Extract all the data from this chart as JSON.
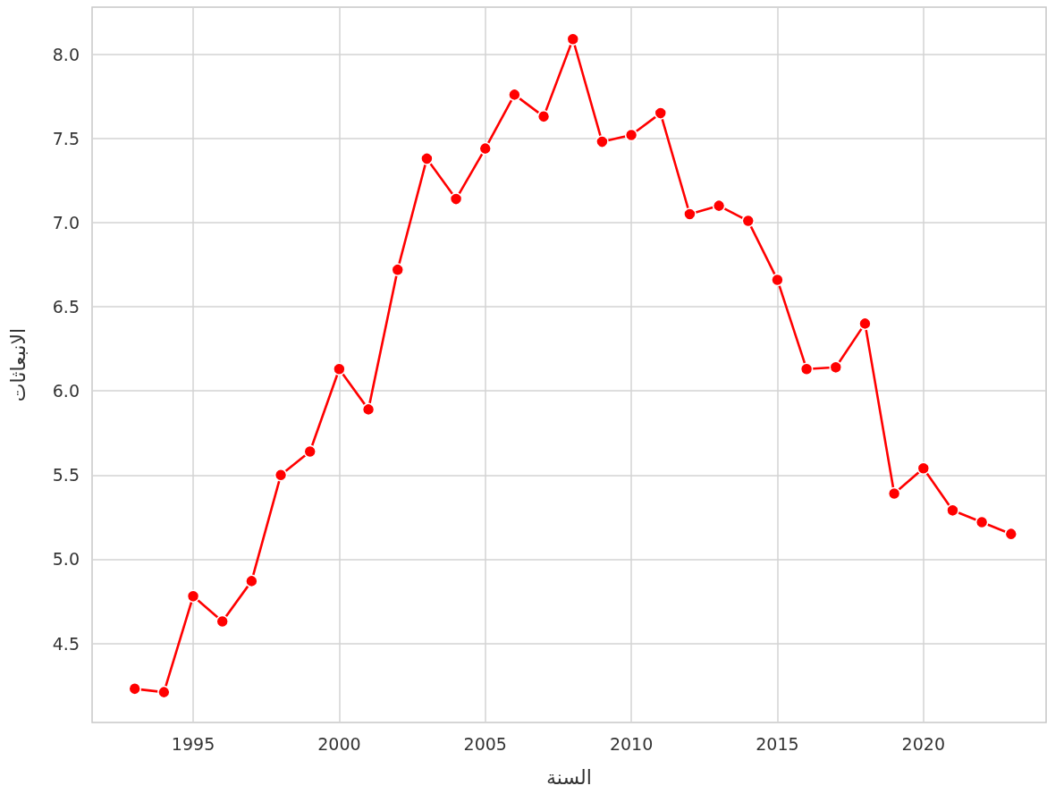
{
  "chart_data": {
    "type": "line",
    "xlabel": "السنة",
    "ylabel": "الانبعاثات",
    "x": [
      1993,
      1994,
      1995,
      1996,
      1997,
      1998,
      1999,
      2000,
      2001,
      2002,
      2003,
      2004,
      2005,
      2006,
      2007,
      2008,
      2009,
      2010,
      2011,
      2012,
      2013,
      2014,
      2015,
      2016,
      2017,
      2018,
      2019,
      2020,
      2021,
      2022,
      2023
    ],
    "series": [
      {
        "color": "#ff0000",
        "values": [
          4.23,
          4.21,
          4.78,
          4.63,
          4.87,
          5.5,
          5.64,
          6.13,
          5.89,
          6.72,
          7.38,
          7.14,
          7.44,
          7.76,
          7.63,
          8.09,
          7.48,
          7.52,
          7.65,
          7.05,
          7.1,
          7.01,
          6.66,
          6.13,
          6.14,
          6.4,
          5.39,
          5.54,
          5.29,
          5.22,
          5.15
        ]
      }
    ],
    "xlim": [
      1991.54,
      2024.2
    ],
    "xticks": [
      1995,
      2000,
      2005,
      2010,
      2015,
      2020
    ],
    "ylim": [
      4.03,
      8.28
    ],
    "yticks": [
      {
        "value": 4.5,
        "label": "4.5"
      },
      {
        "value": 5,
        "label": "5.0"
      },
      {
        "value": 5.5,
        "label": "5.5"
      },
      {
        "value": 6,
        "label": "6.0"
      },
      {
        "value": 6.5,
        "label": "6.5"
      },
      {
        "value": 7,
        "label": "7.0"
      },
      {
        "value": 7.5,
        "label": "7.5"
      },
      {
        "value": 8,
        "label": "8.0"
      }
    ],
    "grid": true,
    "marker": "circle",
    "line_style": "solid"
  }
}
